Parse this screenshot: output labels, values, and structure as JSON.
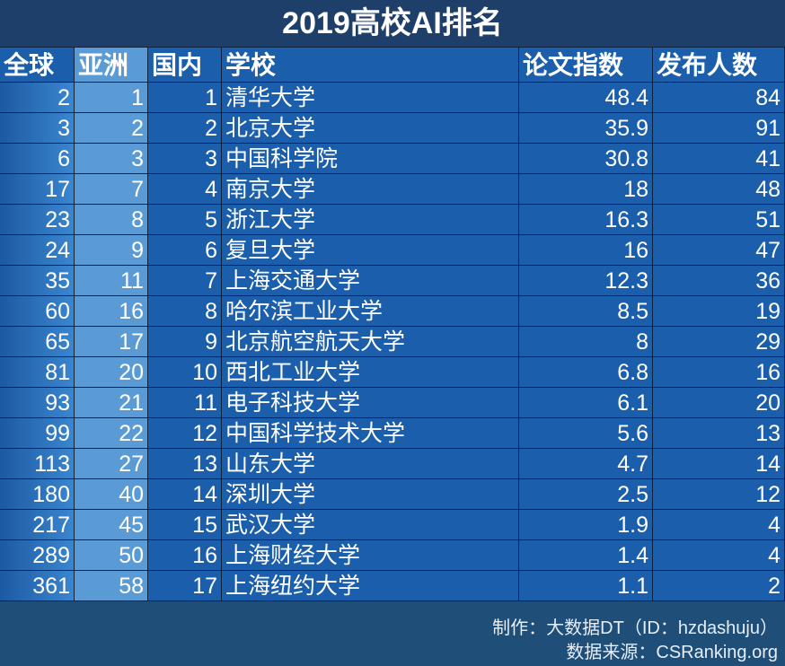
{
  "header": {
    "title": "2019高校AI排名"
  },
  "table": {
    "columns": [
      "全球",
      "亚洲",
      "国内",
      "学校",
      "论文指数",
      "发布人数"
    ],
    "rows": [
      [
        2,
        1,
        1,
        "清华大学",
        48.4,
        84
      ],
      [
        3,
        2,
        2,
        "北京大学",
        35.9,
        91
      ],
      [
        6,
        3,
        3,
        "中国科学院",
        30.8,
        41
      ],
      [
        17,
        7,
        4,
        "南京大学",
        18,
        48
      ],
      [
        23,
        8,
        5,
        "浙江大学",
        16.3,
        51
      ],
      [
        24,
        9,
        6,
        "复旦大学",
        16,
        47
      ],
      [
        35,
        11,
        7,
        "上海交通大学",
        12.3,
        36
      ],
      [
        60,
        16,
        8,
        "哈尔滨工业大学",
        8.5,
        19
      ],
      [
        65,
        17,
        9,
        "北京航空航天大学",
        8,
        29
      ],
      [
        81,
        20,
        10,
        "西北工业大学",
        6.8,
        16
      ],
      [
        93,
        21,
        11,
        "电子科技大学",
        6.1,
        20
      ],
      [
        99,
        22,
        12,
        "中国科学技术大学",
        5.6,
        13
      ],
      [
        113,
        27,
        13,
        "山东大学",
        4.7,
        14
      ],
      [
        180,
        40,
        14,
        "深圳大学",
        2.5,
        12
      ],
      [
        217,
        45,
        15,
        "武汉大学",
        1.9,
        4
      ],
      [
        289,
        50,
        16,
        "上海财经大学",
        1.4,
        4
      ],
      [
        361,
        58,
        17,
        "上海纽约大学",
        1.1,
        2
      ]
    ]
  },
  "footer": {
    "credit": "制作：大数据DT（ID：hzdashuju）",
    "source": "数据来源：CSRanking.org"
  }
}
